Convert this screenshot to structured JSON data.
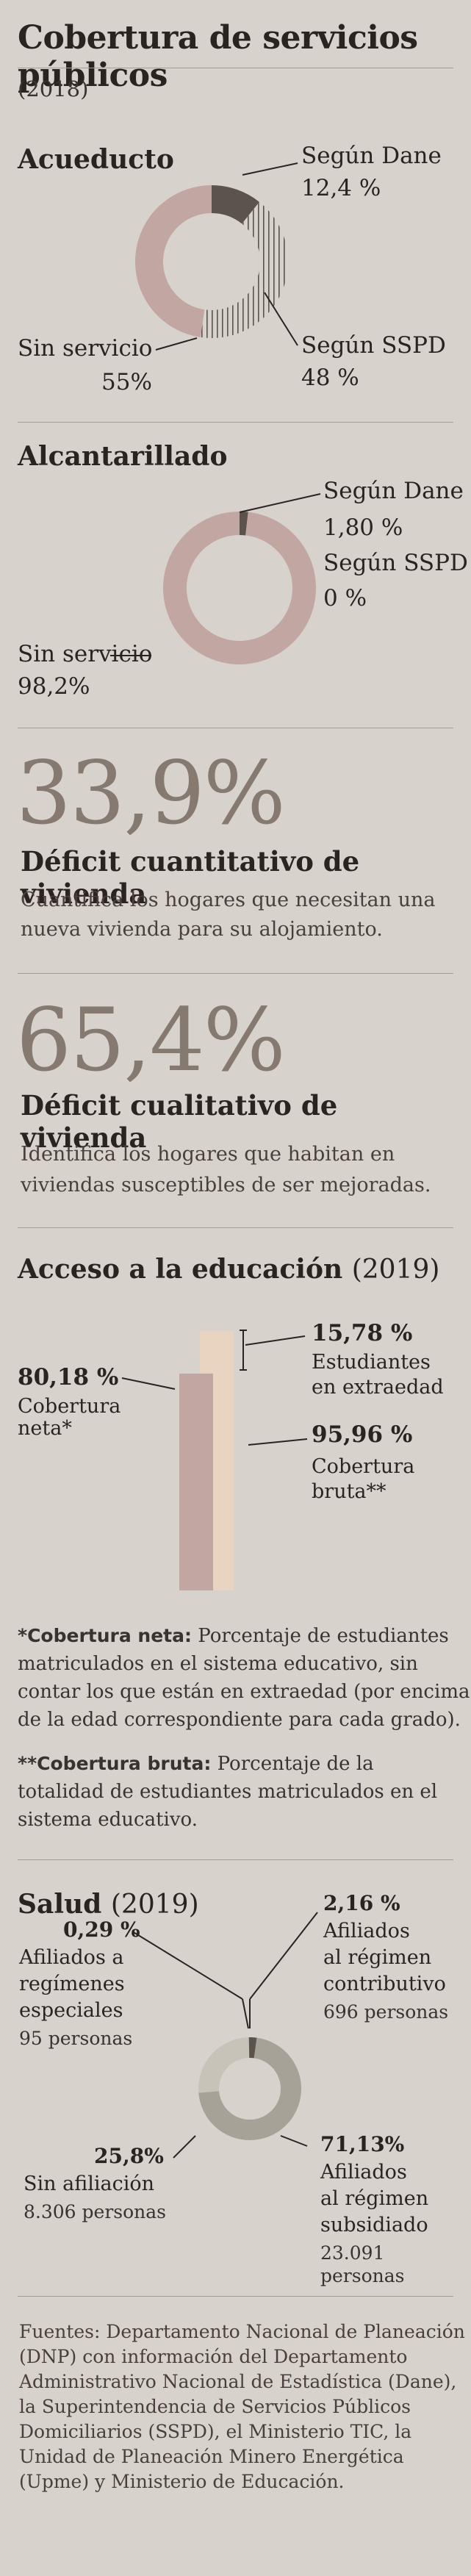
{
  "title": "Cobertura de servicios públicos",
  "year": "(2018)",
  "colors": {
    "background": "#d8d2cd",
    "rose": "#c2a6a2",
    "dark": "#5b534c",
    "rule": "#a59c95",
    "cream": "#e8d4c1",
    "gray": "#a7a297"
  },
  "acueducto": {
    "title": "Acueducto",
    "dane_label": "Según Dane",
    "dane_value": "12,4 %",
    "sspd_label": "Según SSPD",
    "sspd_value": "48 %",
    "sin_label": "Sin servicio",
    "sin_value": "55%"
  },
  "alcantarillado": {
    "title": "Alcantarillado",
    "dane_label": "Según Dane",
    "dane_value": "1,80 %",
    "sspd_label": "Según SSPD",
    "sspd_value": "0 %",
    "sin_label": "Sin servicio",
    "sin_value": "98,2%"
  },
  "deficit_cuantitativo": {
    "value": "33,9%",
    "title": "Déficit cuantitativo de vivienda",
    "desc_line1": "Cuantifica los hogares que necesitan una",
    "desc_line2": "nueva vivienda para su alojamiento."
  },
  "deficit_cualitativo": {
    "value": "65,4%",
    "title": "Déficit cualitativo de vivienda",
    "desc_line1": "Identifica los hogares que habitan en",
    "desc_line2": "viviendas susceptibles de ser mejoradas."
  },
  "educacion": {
    "title": "Acceso a la educación",
    "year": "(2019)",
    "extraedad_value": "15,78 %",
    "extraedad_l1": "Estudiantes",
    "extraedad_l2": "en extraedad",
    "neta_value": "80,18 %",
    "neta_l1": "Cobertura",
    "neta_l2": "neta*",
    "bruta_value": "95,96 %",
    "bruta_l1": "Cobertura",
    "bruta_l2": "bruta**",
    "note1_key": "*Cobertura neta:",
    "note1_line1": "Porcentaje de estudiantes",
    "note1_line2": "matriculados en el sistema educativo, sin",
    "note1_line3": "contar los que están en extraedad (por encima",
    "note1_line4": "de la edad correspondiente para cada grado).",
    "note2_key": "**Cobertura bruta:",
    "note2_line1": "Porcentaje de la",
    "note2_line2": "totalidad de estudiantes matriculados en el",
    "note2_line3": "sistema educativo."
  },
  "salud": {
    "title": "Salud",
    "year": "(2019)",
    "contrib_value": "2,16 %",
    "contrib_l1": "Afiliados",
    "contrib_l2": "al régimen",
    "contrib_l3": "contributivo",
    "contrib_count": "696 personas",
    "esp_value": "0,29 %",
    "esp_l1": "Afiliados a",
    "esp_l2": "regímenes",
    "esp_l3": "especiales",
    "esp_count": "95 personas",
    "sin_value": "25,8%",
    "sin_l1": "Sin afiliación",
    "sin_count": "8.306 personas",
    "subs_value": "71,13%",
    "subs_l1": "Afiliados",
    "subs_l2": "al régimen",
    "subs_l3": "subsidiado",
    "subs_count": "23.091 personas"
  },
  "sources": {
    "l1": "Fuentes: Departamento Nacional de Planeación",
    "l2": "(DNP) con información del Departamento",
    "l3": "Administrativo Nacional de Estadística (Dane),",
    "l4": "la Superintendencia de Servicios Públicos",
    "l5": "Domiciliarios (SSPD), el Ministerio TIC, la",
    "l6": "Unidad de Planeación Minero Energética",
    "l7": "(Upme) y Ministerio de Educación."
  },
  "chart_data": [
    {
      "type": "pie",
      "title": "Acueducto",
      "labels": [
        "Según Dane",
        "Según SSPD",
        "Sin servicio"
      ],
      "values": [
        12.4,
        48,
        55
      ]
    },
    {
      "type": "pie",
      "title": "Alcantarillado",
      "labels": [
        "Según Dane",
        "Según SSPD",
        "Sin servicio"
      ],
      "values": [
        1.8,
        0,
        98.2
      ]
    },
    {
      "type": "bar",
      "title": "Acceso a la educación (2019)",
      "categories": [
        "Cobertura neta*",
        "Cobertura bruta**"
      ],
      "values": [
        80.18,
        95.96
      ],
      "extraedad": 15.78
    },
    {
      "type": "pie",
      "title": "Salud (2019)",
      "labels": [
        "Afiliados al régimen contributivo",
        "Afiliados a regímenes especiales",
        "Sin afiliación",
        "Afiliados al régimen subsidiado"
      ],
      "values": [
        2.16,
        0.29,
        25.8,
        71.13
      ]
    }
  ]
}
